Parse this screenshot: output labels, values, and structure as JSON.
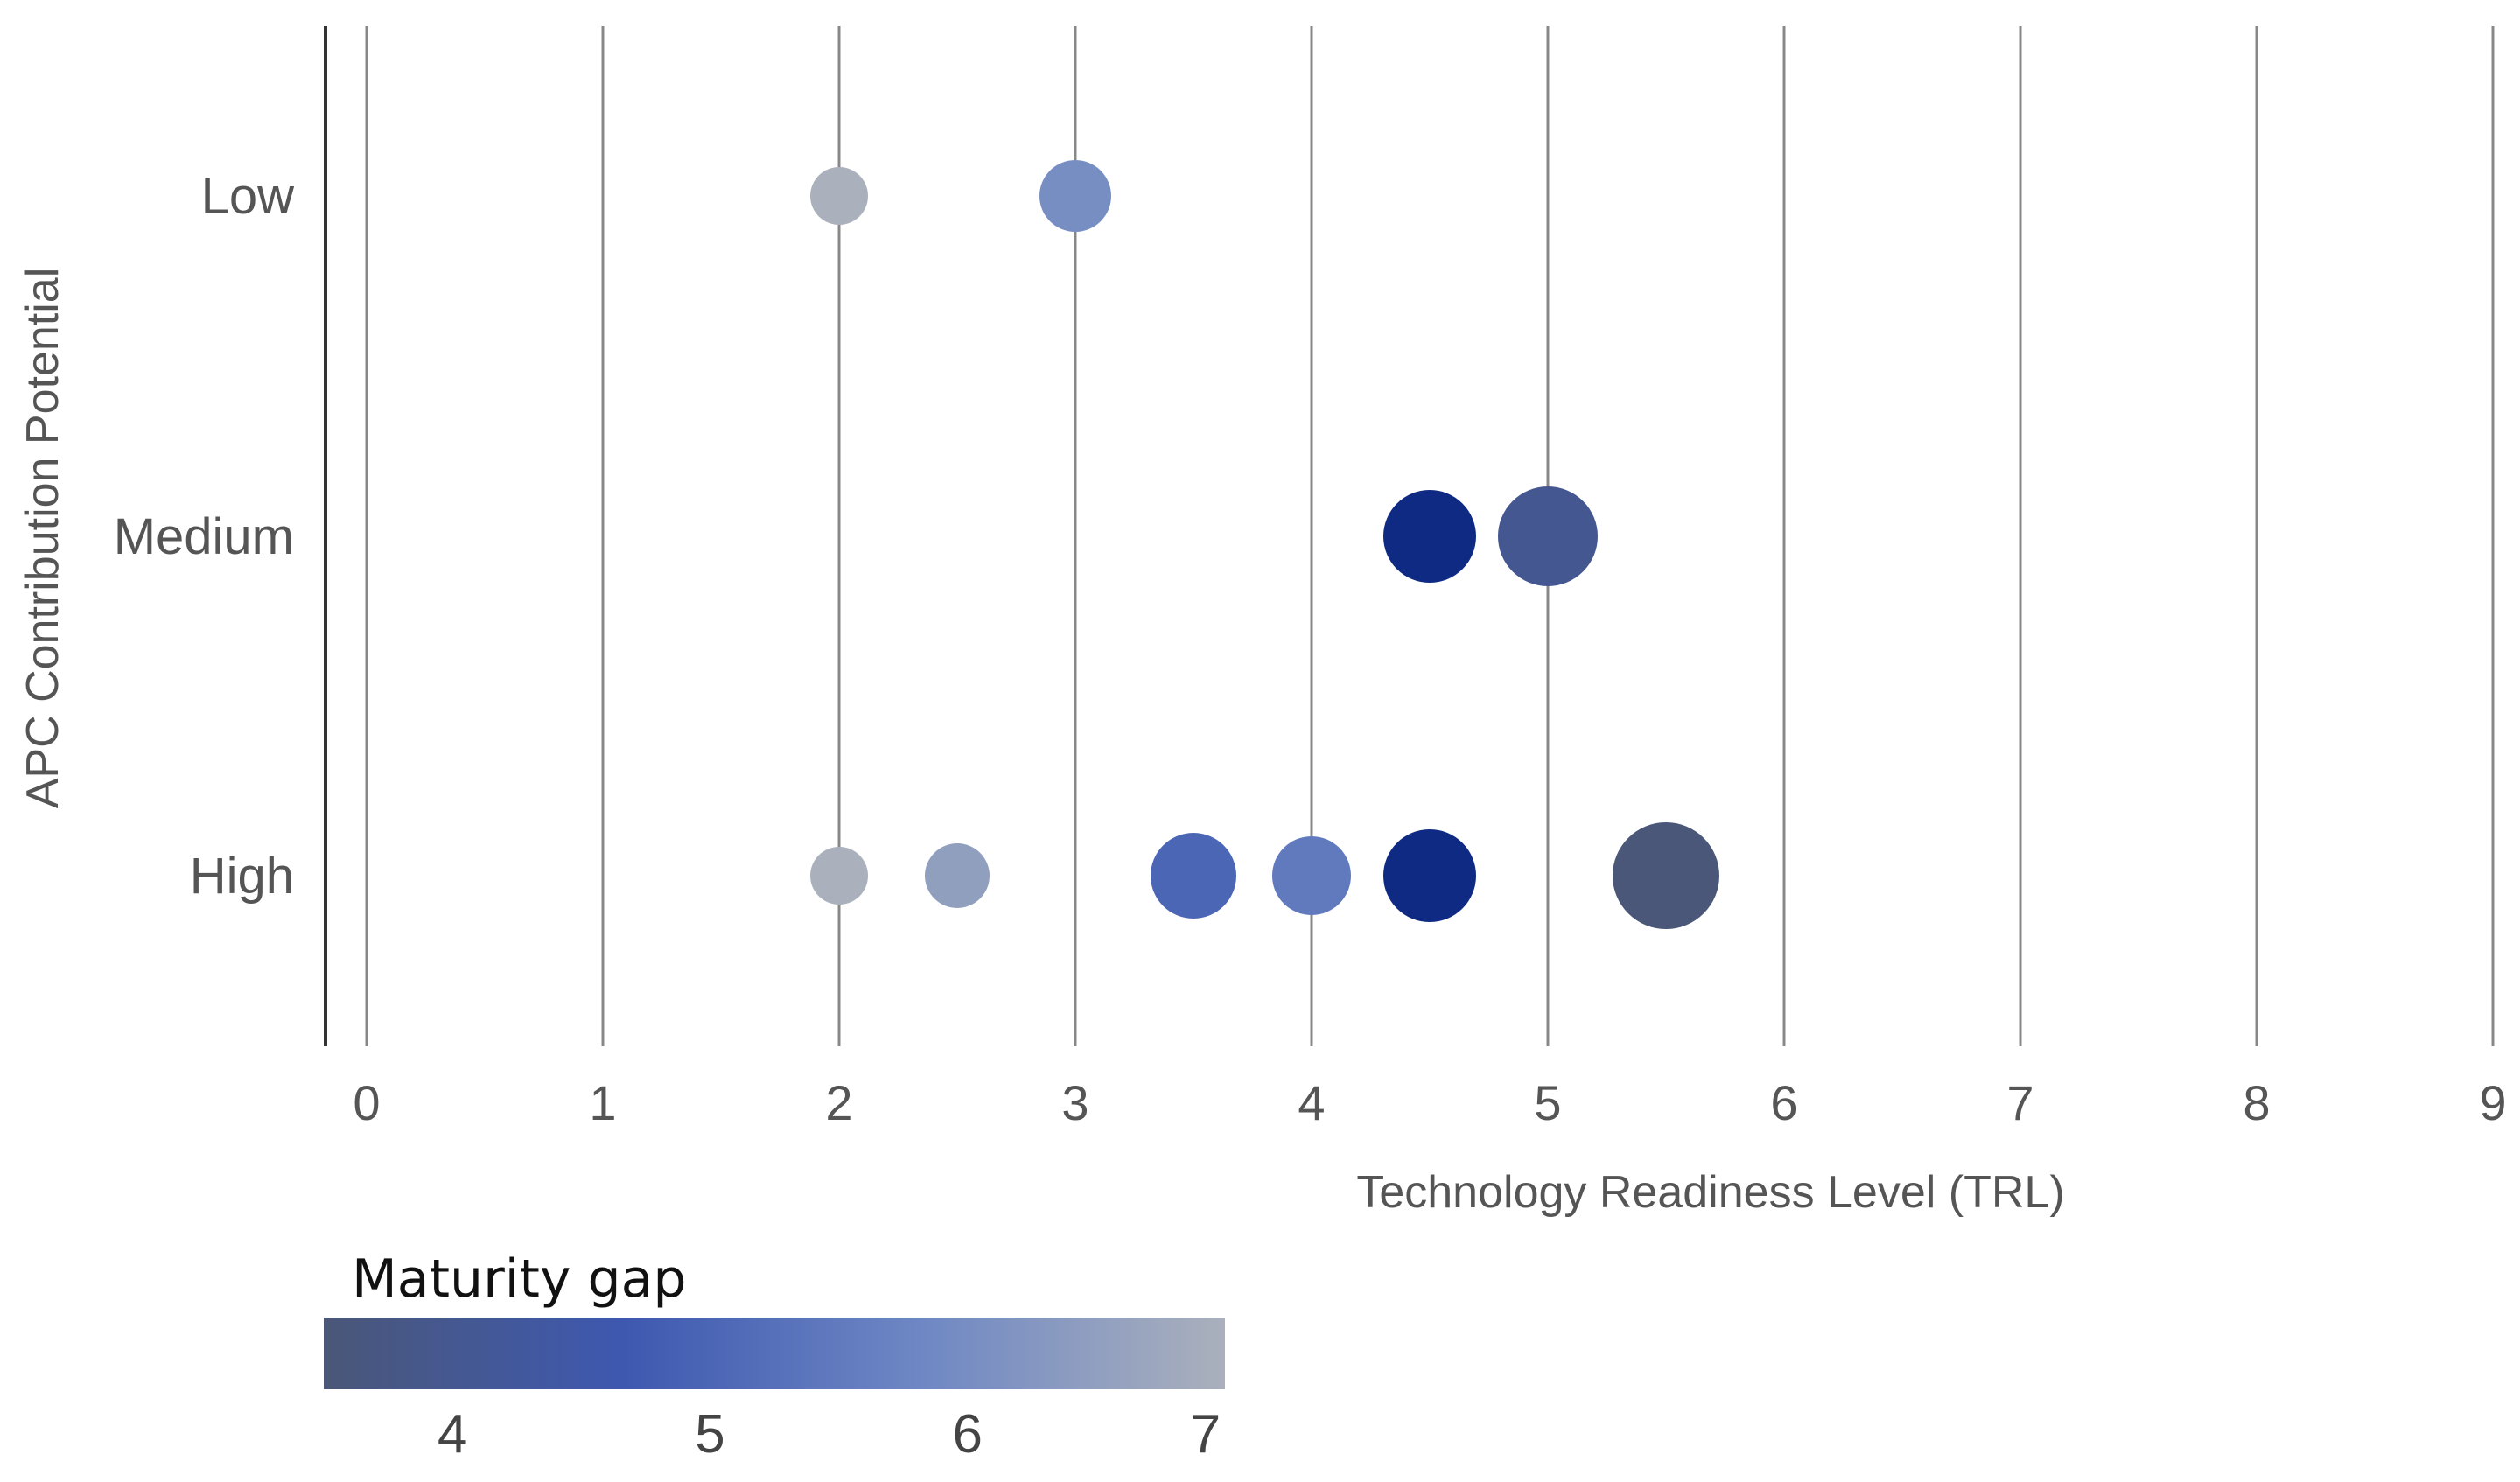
{
  "chart_data": {
    "type": "scatter",
    "title": "",
    "xlabel": "Technology Readiness Level (TRL)",
    "ylabel": "APC Contribution Potential",
    "xlim": [
      0,
      9
    ],
    "x_ticks": [
      "0",
      "1",
      "2",
      "3",
      "4",
      "5",
      "6",
      "7",
      "8",
      "9"
    ],
    "y_categories": [
      "Low",
      "Medium",
      "High"
    ],
    "grid": "vertical",
    "points": [
      {
        "x": 2,
        "y": "Low",
        "maturity_gap": 7
      },
      {
        "x": 3,
        "y": "Low",
        "maturity_gap": 6
      },
      {
        "x": 4.5,
        "y": "Medium",
        "maturity_gap": 4.5
      },
      {
        "x": 5,
        "y": "Medium",
        "maturity_gap": 4
      },
      {
        "x": 2,
        "y": "High",
        "maturity_gap": 7
      },
      {
        "x": 2.5,
        "y": "High",
        "maturity_gap": 6.5
      },
      {
        "x": 3.5,
        "y": "High",
        "maturity_gap": 5
      },
      {
        "x": 4,
        "y": "High",
        "maturity_gap": 5.5
      },
      {
        "x": 4.5,
        "y": "High",
        "maturity_gap": 4.5
      },
      {
        "x": 5.5,
        "y": "High",
        "maturity_gap": 3.5
      }
    ],
    "legend": {
      "title": "Maturity gap",
      "placement": "bottom-left",
      "range": [
        3.5,
        7
      ],
      "ticks": [
        "4",
        "5",
        "6",
        "7"
      ],
      "colors": [
        "#4a5778",
        "#3e58b0",
        "#6f88c4",
        "#aab0bc"
      ]
    },
    "colors": {
      "grid": "#888888",
      "axis": "#333333",
      "dot_max_gap": "#aab0bc",
      "dot_min_gap": "#4a5778"
    }
  }
}
